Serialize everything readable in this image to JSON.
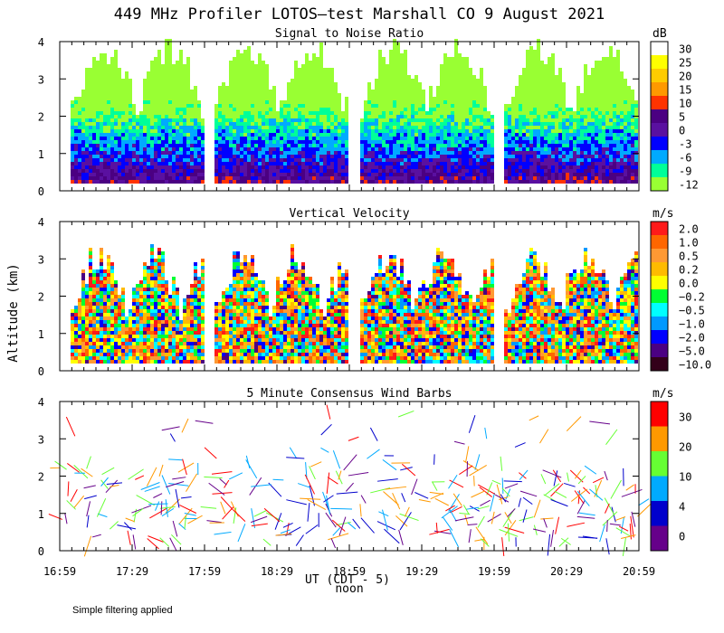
{
  "title": "449 MHz Profiler LOTOS—test Marshall CO  9 August 2021",
  "y_axis_label": "Altitude (km)",
  "x_axis_label": "UT  (CDT - 5)",
  "x_axis_sublabel": "noon",
  "footnote": "Simple filtering applied",
  "x_ticks": [
    "16:59",
    "17:29",
    "17:59",
    "18:29",
    "18:59",
    "19:29",
    "19:59",
    "20:29",
    "20:59"
  ],
  "chart_data": [
    {
      "type": "heatmap",
      "title": "Signal to Noise Ratio",
      "unit": "dB",
      "x": [
        "16:59",
        "17:29",
        "17:59",
        "18:29",
        "18:59",
        "19:29",
        "19:59",
        "20:29",
        "20:59"
      ],
      "ylim": [
        0,
        4
      ],
      "y_ticks": [
        0,
        1,
        2,
        3,
        4
      ],
      "color_levels": [
        "30",
        "25",
        "20",
        "15",
        "10",
        "5",
        "0",
        "-3",
        "-6",
        "-9",
        "-12"
      ],
      "colors": [
        "#ffffff",
        "#ffff00",
        "#ffcc00",
        "#ff9900",
        "#ff3300",
        "#4b0082",
        "#5a10a0",
        "#0000ff",
        "#00aaff",
        "#00ff99",
        "#99ff33"
      ]
    },
    {
      "type": "heatmap",
      "title": "Vertical Velocity",
      "unit": "m/s",
      "x": [
        "16:59",
        "17:29",
        "17:59",
        "18:29",
        "18:59",
        "19:29",
        "19:59",
        "20:29",
        "20:59"
      ],
      "ylim": [
        0,
        4
      ],
      "y_ticks": [
        0,
        1,
        2,
        3,
        4
      ],
      "color_levels": [
        "2.0",
        "1.0",
        "0.5",
        "0.2",
        "0.0",
        "−0.2",
        "−0.5",
        "−1.0",
        "−2.0",
        "−5.0",
        "−10.0"
      ],
      "colors": [
        "#ff1a1a",
        "#ff6600",
        "#ff9933",
        "#ffbb00",
        "#ffff00",
        "#00ff33",
        "#00ffff",
        "#0099ff",
        "#0000ff",
        "#4b0082",
        "#33001a"
      ]
    },
    {
      "type": "scatter",
      "title": "5 Minute Consensus Wind Barbs",
      "unit": "m/s",
      "x": [
        "16:59",
        "17:29",
        "17:59",
        "18:29",
        "18:59",
        "19:29",
        "19:59",
        "20:29",
        "20:59"
      ],
      "ylim": [
        0,
        4
      ],
      "y_ticks": [
        0,
        1,
        2,
        3,
        4
      ],
      "color_levels": [
        "30",
        "20",
        "10",
        "4",
        "0"
      ],
      "colors": [
        "#ff0000",
        "#ff9900",
        "#66ff33",
        "#00aaff",
        "#0000cc",
        "#66008a"
      ]
    }
  ]
}
